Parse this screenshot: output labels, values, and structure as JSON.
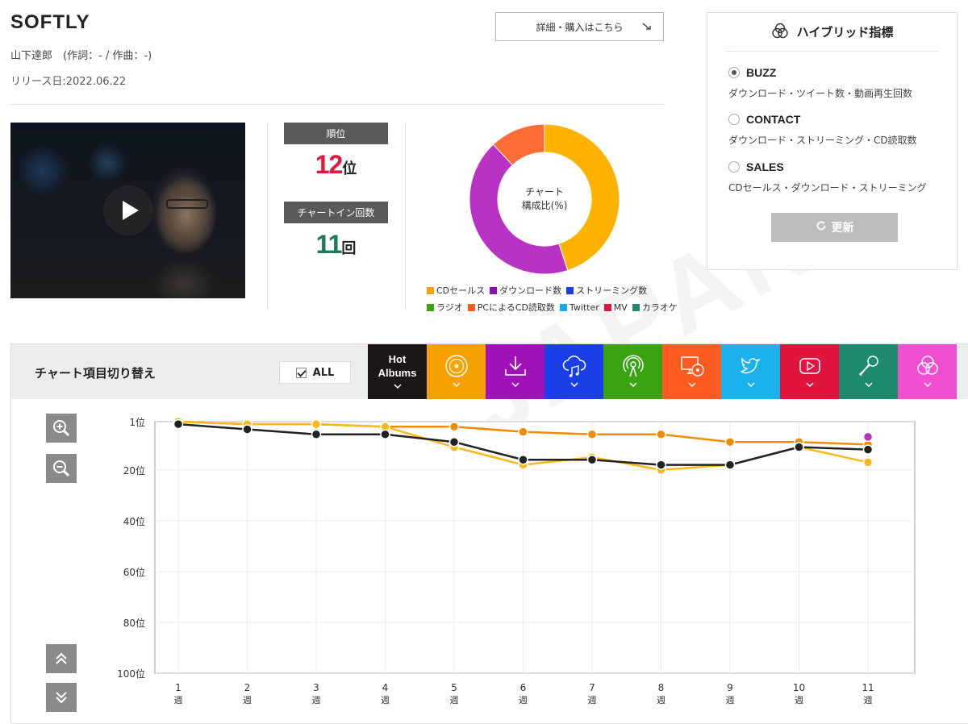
{
  "song": {
    "title": "SOFTLY",
    "artist_line": "山下達郎　(作詞：- / 作曲：-)",
    "release_line": "リリース日:2022.06.22"
  },
  "buy_button": {
    "label": "詳細・購入はこちら",
    "icon": "arrow-right-down-icon"
  },
  "video": {
    "play_icon": "play-icon"
  },
  "stats": {
    "rank_label": "順位",
    "rank_value": "12",
    "rank_unit": "位",
    "chart_in_label": "チャートイン回数",
    "chart_in_value": "11",
    "chart_in_unit": "回"
  },
  "donut": {
    "center_line1": "チャート",
    "center_line2": "構成比(%)"
  },
  "legend": {
    "row1": [
      {
        "label": "CDセールス",
        "color": "#f5a200"
      },
      {
        "label": "ダウンロード数",
        "color": "#8a10b0"
      },
      {
        "label": "ストリーミング数",
        "color": "#1a3ee8"
      }
    ],
    "row2": [
      {
        "label": "ラジオ",
        "color": "#3aa312"
      },
      {
        "label": "PCによるCD読取数",
        "color": "#ff5a1f"
      },
      {
        "label": "Twitter",
        "color": "#1aa8e8"
      },
      {
        "label": "MV",
        "color": "#e0143c"
      },
      {
        "label": "カラオケ",
        "color": "#1e8a6e"
      }
    ]
  },
  "hybrid": {
    "title": "ハイブリッド指標",
    "icon": "venn-circles-icon",
    "options": [
      {
        "name": "BUZZ",
        "desc": "ダウンロード・ツイート数・動画再生回数",
        "checked": true
      },
      {
        "name": "CONTACT",
        "desc": "ダウンロード・ストリーミング・CD読取数",
        "checked": false
      },
      {
        "name": "SALES",
        "desc": "CDセールス・ダウンロード・ストリーミング",
        "checked": false
      }
    ],
    "update_label": "更新",
    "update_icon": "refresh-icon"
  },
  "toolbar": {
    "title": "チャート項目切り替え",
    "all_label": "ALL",
    "tabs": [
      {
        "name": "hot-albums",
        "line1": "Hot",
        "line2": "Albums",
        "color": "#1c1616"
      },
      {
        "name": "cd-sales",
        "icon": "cd-disc-icon",
        "color": "#f5a200"
      },
      {
        "name": "download",
        "icon": "download-icon",
        "color": "#a012b8"
      },
      {
        "name": "streaming",
        "icon": "cloud-music-icon",
        "color": "#1a3ee8"
      },
      {
        "name": "radio",
        "icon": "radio-antenna-icon",
        "color": "#3aa312"
      },
      {
        "name": "pc-cd-read",
        "icon": "monitor-disc-icon",
        "color": "#ff5a1f"
      },
      {
        "name": "twitter",
        "icon": "twitter-bird-icon",
        "color": "#1ab2ec"
      },
      {
        "name": "mv",
        "icon": "youtube-play-icon",
        "color": "#e0143c"
      },
      {
        "name": "karaoke",
        "icon": "microphone-icon",
        "color": "#1e8a6e"
      },
      {
        "name": "hybrid",
        "icon": "venn-circles-icon",
        "color": "#f24fd0"
      }
    ]
  },
  "controls": {
    "zoom_in_icon": "zoom-in-icon",
    "zoom_out_icon": "zoom-out-icon",
    "scroll_up_icon": "double-chevron-up-icon",
    "scroll_down_icon": "double-chevron-down-icon"
  },
  "chart_data": [
    {
      "type": "pie",
      "categories": [
        "CDセールス",
        "ダウンロード数",
        "PCによるCD読取数"
      ],
      "values": [
        45,
        43,
        12
      ],
      "colors": [
        "#ffb300",
        "#b832c4",
        "#ff6e35"
      ]
    },
    {
      "type": "line",
      "x": [
        "1\n週",
        "2\n週",
        "3\n週",
        "4\n週",
        "5\n週",
        "6\n週",
        "7\n週",
        "8\n週",
        "9\n週",
        "10\n週",
        "11\n週"
      ],
      "x_labels_top": [
        "1",
        "2",
        "3",
        "4",
        "5",
        "6",
        "7",
        "8",
        "9",
        "10",
        "11"
      ],
      "x_labels_bottom": "週",
      "y_ticks": [
        1,
        20,
        40,
        60,
        80,
        100
      ],
      "y_tick_labels": [
        "1位",
        "20位",
        "40位",
        "60位",
        "80位",
        "100位"
      ],
      "ylim": [
        1,
        100
      ],
      "y_inverted": true,
      "series": [
        {
          "color": "#ef8c00",
          "values": [
            1,
            2,
            2,
            3,
            3,
            5,
            6,
            6,
            9,
            9,
            10
          ]
        },
        {
          "color": "#ffb81c",
          "values": [
            1,
            2,
            2,
            3,
            11,
            18,
            15,
            20,
            18,
            11,
            17
          ]
        },
        {
          "color": "#222222",
          "values": [
            2,
            4,
            6,
            6,
            9,
            16,
            16,
            18,
            18,
            11,
            12
          ]
        },
        {
          "color": "#b832c4",
          "values": [
            null,
            null,
            null,
            null,
            null,
            null,
            null,
            null,
            null,
            null,
            7
          ]
        }
      ]
    }
  ]
}
